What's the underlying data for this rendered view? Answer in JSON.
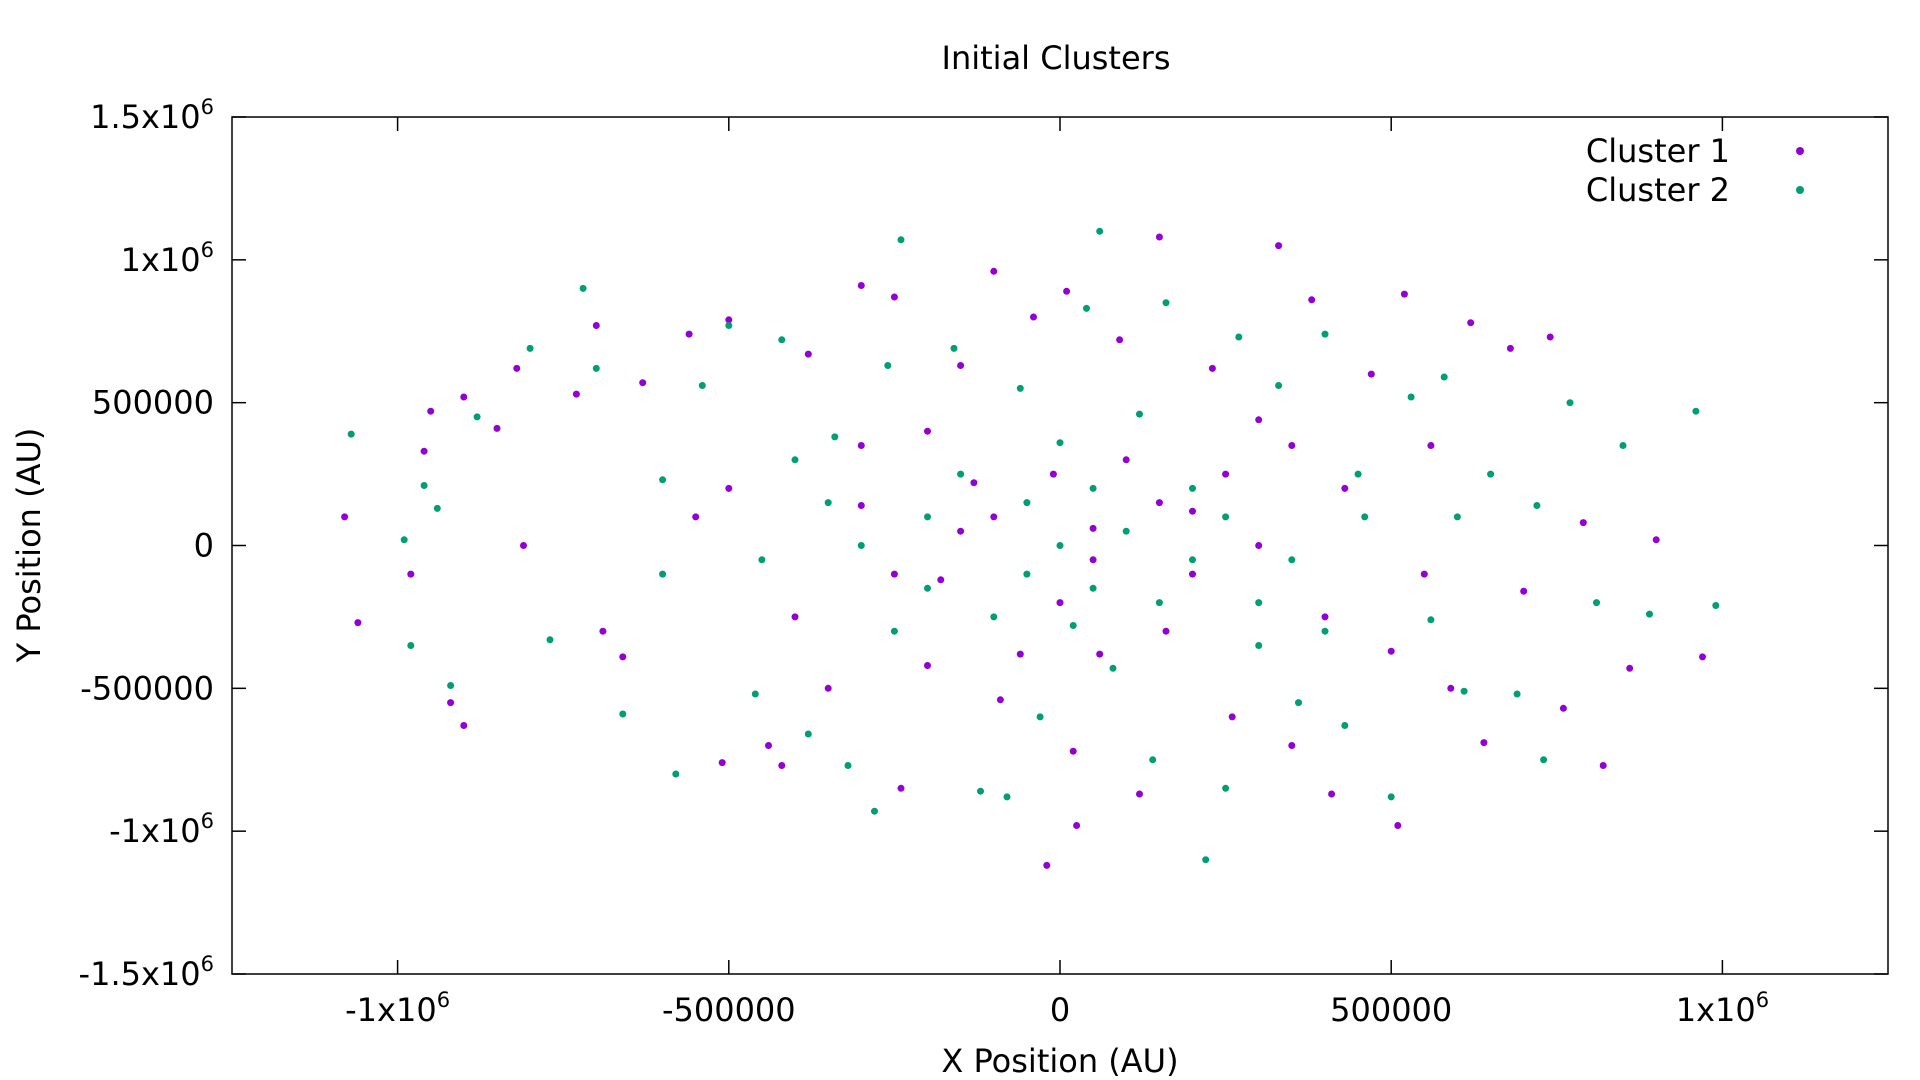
{
  "chart_data": {
    "type": "scatter",
    "title": "Initial Clusters",
    "xlabel": "X Position (AU)",
    "ylabel": "Y Position (AU)",
    "xlim": [
      -1250000,
      1250000
    ],
    "ylim": [
      -1500000,
      1500000
    ],
    "grid": false,
    "legend_placement": "top-right",
    "x_ticks": [
      {
        "value": -1000000,
        "base": "-1x10",
        "exp": "6"
      },
      {
        "value": -500000,
        "base": "-500000",
        "exp": ""
      },
      {
        "value": 0,
        "base": "0",
        "exp": ""
      },
      {
        "value": 500000,
        "base": "500000",
        "exp": ""
      },
      {
        "value": 1000000,
        "base": "1x10",
        "exp": "6"
      }
    ],
    "y_ticks": [
      {
        "value": 1500000,
        "base": "1.5x10",
        "exp": "6"
      },
      {
        "value": 1000000,
        "base": "1x10",
        "exp": "6"
      },
      {
        "value": 500000,
        "base": "500000",
        "exp": ""
      },
      {
        "value": 0,
        "base": "0",
        "exp": ""
      },
      {
        "value": -500000,
        "base": "-500000",
        "exp": ""
      },
      {
        "value": -1000000,
        "base": "-1x10",
        "exp": "6"
      },
      {
        "value": -1500000,
        "base": "-1.5x10",
        "exp": "6"
      }
    ],
    "series": [
      {
        "name": "Cluster 1",
        "color": "#9400d3",
        "points": [
          [
            -1080000,
            100000
          ],
          [
            -1060000,
            -270000
          ],
          [
            -980000,
            -100000
          ],
          [
            -950000,
            470000
          ],
          [
            -960000,
            330000
          ],
          [
            -920000,
            -550000
          ],
          [
            -900000,
            520000
          ],
          [
            -900000,
            -630000
          ],
          [
            -850000,
            410000
          ],
          [
            -820000,
            620000
          ],
          [
            -810000,
            0
          ],
          [
            -730000,
            530000
          ],
          [
            -700000,
            770000
          ],
          [
            -690000,
            -300000
          ],
          [
            -660000,
            -390000
          ],
          [
            -630000,
            570000
          ],
          [
            -560000,
            740000
          ],
          [
            -510000,
            -760000
          ],
          [
            -500000,
            790000
          ],
          [
            -440000,
            -700000
          ],
          [
            -420000,
            -770000
          ],
          [
            -380000,
            670000
          ],
          [
            -300000,
            910000
          ],
          [
            -300000,
            140000
          ],
          [
            -250000,
            870000
          ],
          [
            -240000,
            -850000
          ],
          [
            -200000,
            400000
          ],
          [
            -180000,
            -120000
          ],
          [
            -150000,
            630000
          ],
          [
            -130000,
            220000
          ],
          [
            -100000,
            960000
          ],
          [
            -90000,
            -540000
          ],
          [
            -60000,
            -380000
          ],
          [
            -40000,
            800000
          ],
          [
            -20000,
            -1120000
          ],
          [
            -10000,
            250000
          ],
          [
            10000,
            890000
          ],
          [
            20000,
            -720000
          ],
          [
            25000,
            -980000
          ],
          [
            50000,
            60000
          ],
          [
            60000,
            -380000
          ],
          [
            90000,
            720000
          ],
          [
            120000,
            -870000
          ],
          [
            150000,
            1080000
          ],
          [
            160000,
            -300000
          ],
          [
            200000,
            120000
          ],
          [
            230000,
            620000
          ],
          [
            260000,
            -600000
          ],
          [
            300000,
            440000
          ],
          [
            330000,
            1050000
          ],
          [
            350000,
            -700000
          ],
          [
            380000,
            860000
          ],
          [
            410000,
            -870000
          ],
          [
            430000,
            200000
          ],
          [
            470000,
            600000
          ],
          [
            500000,
            -370000
          ],
          [
            510000,
            -980000
          ],
          [
            520000,
            880000
          ],
          [
            560000,
            350000
          ],
          [
            590000,
            -500000
          ],
          [
            620000,
            780000
          ],
          [
            640000,
            -690000
          ],
          [
            680000,
            690000
          ],
          [
            700000,
            -160000
          ],
          [
            740000,
            730000
          ],
          [
            760000,
            -570000
          ],
          [
            790000,
            80000
          ],
          [
            820000,
            -770000
          ],
          [
            860000,
            -430000
          ],
          [
            900000,
            20000
          ],
          [
            970000,
            -390000
          ],
          [
            -500000,
            200000
          ],
          [
            -400000,
            -250000
          ],
          [
            -300000,
            350000
          ],
          [
            -200000,
            -420000
          ],
          [
            -100000,
            100000
          ],
          [
            0,
            -200000
          ],
          [
            100000,
            300000
          ],
          [
            200000,
            -100000
          ],
          [
            300000,
            0
          ],
          [
            400000,
            -250000
          ],
          [
            -250000,
            -100000
          ],
          [
            -150000,
            50000
          ],
          [
            50000,
            -50000
          ],
          [
            150000,
            150000
          ],
          [
            250000,
            250000
          ],
          [
            -350000,
            -500000
          ],
          [
            350000,
            350000
          ],
          [
            -550000,
            100000
          ],
          [
            550000,
            -100000
          ]
        ]
      },
      {
        "name": "Cluster 2",
        "color": "#009e73",
        "points": [
          [
            -1070000,
            390000
          ],
          [
            -990000,
            20000
          ],
          [
            -980000,
            -350000
          ],
          [
            -960000,
            210000
          ],
          [
            -940000,
            130000
          ],
          [
            -920000,
            -490000
          ],
          [
            -880000,
            450000
          ],
          [
            -800000,
            690000
          ],
          [
            -770000,
            -330000
          ],
          [
            -720000,
            900000
          ],
          [
            -700000,
            620000
          ],
          [
            -660000,
            -590000
          ],
          [
            -600000,
            230000
          ],
          [
            -580000,
            -800000
          ],
          [
            -540000,
            560000
          ],
          [
            -500000,
            770000
          ],
          [
            -460000,
            -520000
          ],
          [
            -420000,
            720000
          ],
          [
            -380000,
            -660000
          ],
          [
            -340000,
            380000
          ],
          [
            -320000,
            -770000
          ],
          [
            -280000,
            -930000
          ],
          [
            -260000,
            630000
          ],
          [
            -240000,
            1070000
          ],
          [
            -200000,
            -150000
          ],
          [
            -160000,
            690000
          ],
          [
            -120000,
            -860000
          ],
          [
            -80000,
            -880000
          ],
          [
            -60000,
            550000
          ],
          [
            -30000,
            -600000
          ],
          [
            0,
            360000
          ],
          [
            20000,
            -280000
          ],
          [
            40000,
            830000
          ],
          [
            60000,
            1100000
          ],
          [
            80000,
            -430000
          ],
          [
            120000,
            460000
          ],
          [
            140000,
            -750000
          ],
          [
            160000,
            850000
          ],
          [
            200000,
            200000
          ],
          [
            220000,
            -1100000
          ],
          [
            250000,
            -850000
          ],
          [
            270000,
            730000
          ],
          [
            300000,
            -200000
          ],
          [
            330000,
            560000
          ],
          [
            360000,
            -550000
          ],
          [
            400000,
            740000
          ],
          [
            430000,
            -630000
          ],
          [
            460000,
            100000
          ],
          [
            500000,
            -880000
          ],
          [
            530000,
            520000
          ],
          [
            560000,
            -260000
          ],
          [
            580000,
            590000
          ],
          [
            610000,
            -510000
          ],
          [
            650000,
            250000
          ],
          [
            690000,
            -520000
          ],
          [
            720000,
            140000
          ],
          [
            730000,
            -750000
          ],
          [
            770000,
            500000
          ],
          [
            810000,
            -200000
          ],
          [
            850000,
            350000
          ],
          [
            890000,
            -240000
          ],
          [
            960000,
            470000
          ],
          [
            990000,
            -210000
          ],
          [
            -450000,
            -50000
          ],
          [
            -350000,
            150000
          ],
          [
            -250000,
            -300000
          ],
          [
            -150000,
            250000
          ],
          [
            -50000,
            -100000
          ],
          [
            50000,
            200000
          ],
          [
            150000,
            -200000
          ],
          [
            250000,
            100000
          ],
          [
            350000,
            -50000
          ],
          [
            450000,
            250000
          ],
          [
            -300000,
            0
          ],
          [
            -100000,
            -250000
          ],
          [
            100000,
            50000
          ],
          [
            300000,
            -350000
          ],
          [
            -200000,
            100000
          ],
          [
            0,
            0
          ],
          [
            200000,
            -50000
          ],
          [
            -400000,
            300000
          ],
          [
            400000,
            -300000
          ],
          [
            -600000,
            -100000
          ],
          [
            600000,
            100000
          ],
          [
            -50000,
            150000
          ],
          [
            50000,
            -150000
          ]
        ]
      }
    ]
  }
}
